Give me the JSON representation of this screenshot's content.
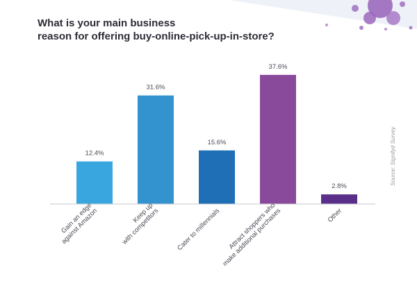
{
  "chart_data": {
    "type": "bar",
    "title": "What is your main business reason for offering buy-online-pick-up-in-store?",
    "title_lines": [
      "What is your main business",
      "reason for offering buy-online-pick-up-in-store?"
    ],
    "categories": [
      [
        "Gain an edge",
        "against Amazon"
      ],
      [
        "Keep up",
        "with competitors"
      ],
      [
        "Cater to millennials"
      ],
      [
        "Attract shoppers who",
        "make additional purchases"
      ],
      [
        "Other"
      ]
    ],
    "values": [
      12.4,
      31.6,
      15.6,
      37.6,
      2.8
    ],
    "value_labels": [
      "12.4%",
      "31.6%",
      "15.6%",
      "37.6%",
      "2.8%"
    ],
    "bar_colors": [
      "#3aa6e0",
      "#3293cf",
      "#1e6fb5",
      "#8a4a9c",
      "#5a2f8a"
    ],
    "ylim": [
      0,
      40
    ],
    "source": "Source: Signifyd Survey"
  },
  "colors": {
    "title": "#2c2c36",
    "label": "#4a4a55",
    "axis": "#c8c8cc",
    "splat": "#9b69bd",
    "corner_band": "#eef1f8"
  }
}
